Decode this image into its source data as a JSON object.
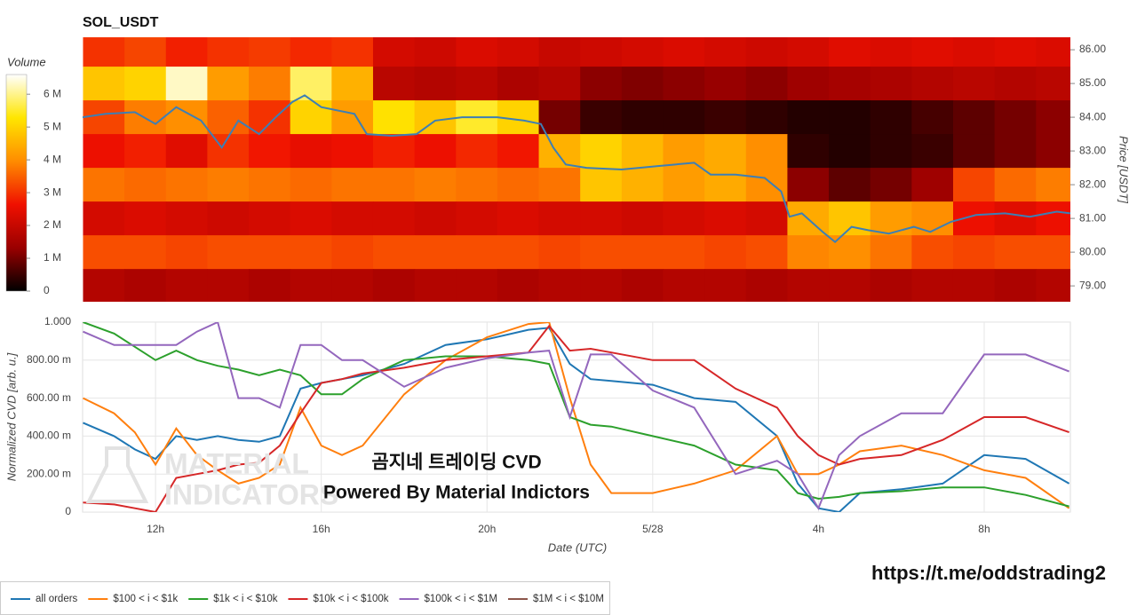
{
  "chart_data": [
    {
      "type": "heatmap",
      "title": "SOL_USDT",
      "x": [
        10.75,
        11.75,
        12.75,
        13.75,
        14.75,
        15.75,
        16.75,
        17.75,
        18.75,
        19.75,
        20.75,
        21.75,
        22.75,
        23.75,
        24.75,
        25.75,
        26.75,
        27.75,
        28.75,
        29.75,
        30.75,
        31.75,
        32.75,
        33.75
      ],
      "y": [
        86,
        85,
        84,
        83,
        82,
        81,
        80,
        79
      ],
      "z": [
        [
          3.0,
          3.2,
          2.8,
          3.0,
          3.1,
          2.9,
          3.0,
          2.2,
          2.1,
          2.3,
          2.2,
          2.0,
          2.1,
          2.2,
          2.3,
          2.2,
          2.1,
          2.2,
          2.4,
          2.3,
          2.4,
          2.3,
          2.4,
          2.3
        ],
        [
          4.8,
          5.0,
          6.3,
          4.2,
          3.8,
          5.8,
          4.5,
          1.8,
          1.7,
          1.8,
          1.6,
          1.7,
          1.2,
          1.1,
          1.2,
          1.3,
          1.2,
          1.4,
          1.5,
          1.6,
          1.7,
          1.8,
          1.7,
          1.8
        ],
        [
          3.2,
          3.8,
          4.0,
          3.5,
          3.0,
          5.0,
          4.2,
          5.2,
          4.8,
          5.5,
          5.0,
          1.0,
          0.5,
          0.4,
          0.4,
          0.5,
          0.4,
          0.3,
          0.3,
          0.4,
          0.6,
          0.8,
          1.0,
          1.2
        ],
        [
          2.6,
          2.8,
          2.4,
          3.0,
          2.7,
          2.5,
          2.6,
          2.8,
          2.6,
          2.9,
          2.7,
          4.5,
          5.0,
          4.6,
          4.2,
          4.4,
          4.0,
          0.4,
          0.3,
          0.4,
          0.5,
          0.8,
          1.0,
          1.2
        ],
        [
          3.7,
          3.6,
          3.7,
          3.8,
          3.7,
          3.6,
          3.7,
          3.7,
          3.8,
          3.7,
          3.6,
          3.7,
          4.8,
          4.5,
          4.2,
          4.4,
          4.0,
          1.2,
          0.8,
          1.0,
          1.4,
          3.2,
          3.6,
          3.8
        ],
        [
          2.2,
          2.3,
          2.2,
          2.1,
          2.2,
          2.3,
          2.2,
          2.2,
          2.1,
          2.2,
          2.3,
          2.2,
          2.2,
          2.1,
          2.2,
          2.3,
          2.2,
          4.4,
          4.8,
          4.2,
          4.0,
          2.6,
          2.4,
          2.6
        ],
        [
          3.3,
          3.3,
          3.2,
          3.3,
          3.3,
          3.3,
          3.2,
          3.3,
          3.3,
          3.3,
          3.3,
          3.2,
          3.3,
          3.3,
          3.3,
          3.2,
          3.3,
          3.9,
          4.0,
          3.7,
          3.3,
          3.2,
          3.3,
          3.3
        ],
        [
          1.7,
          1.6,
          1.7,
          1.7,
          1.6,
          1.7,
          1.7,
          1.6,
          1.7,
          1.7,
          1.6,
          1.7,
          1.7,
          1.6,
          1.7,
          1.7,
          1.6,
          1.7,
          1.7,
          1.6,
          1.7,
          1.7,
          1.6,
          1.7
        ]
      ],
      "colorscale": [
        "#000000",
        "#9a0000",
        "#f01000",
        "#ff8c00",
        "#ffe600",
        "#ffffff"
      ],
      "colorbar_title": "Volume",
      "zlim": [
        0,
        6.6
      ],
      "zticks": [
        0,
        {
          "value": 1,
          "label": "1 M"
        },
        {
          "value": 2,
          "label": "2 M"
        },
        {
          "value": 3,
          "label": "3 M"
        },
        {
          "value": 4,
          "label": "4 M"
        },
        {
          "value": 5,
          "label": "5 M"
        },
        {
          "value": 6,
          "label": "6 M"
        }
      ],
      "xlim": [
        10.24,
        34.08
      ],
      "ylim": [
        78.53,
        86.37
      ],
      "yticks": [
        {
          "value": 79,
          "label": "79.00"
        },
        {
          "value": 80,
          "label": "80.00"
        },
        {
          "value": 81,
          "label": "81.00"
        },
        {
          "value": 82,
          "label": "82.00"
        },
        {
          "value": 83,
          "label": "83.00"
        },
        {
          "value": 84,
          "label": "84.00"
        },
        {
          "value": 85,
          "label": "85.00"
        },
        {
          "value": 86,
          "label": "86.00"
        }
      ],
      "y_label": "Price [USDT]",
      "series": [
        {
          "color": "#3d7fb5",
          "x": [
            10.24,
            10.8,
            11.5,
            12.0,
            12.5,
            13.1,
            13.6,
            14.0,
            14.5,
            14.9,
            15.3,
            15.6,
            16.0,
            16.4,
            16.8,
            17.1,
            17.7,
            18.3,
            18.75,
            19.4,
            20.25,
            20.9,
            21.3,
            21.6,
            21.9,
            22.4,
            23.25,
            24.1,
            25.0,
            25.4,
            26.0,
            26.7,
            27.1,
            27.3,
            27.6,
            28.1,
            28.4,
            28.8,
            29.2,
            29.7,
            30.3,
            30.7,
            31.2,
            31.8,
            32.5,
            33.1,
            33.75,
            34.08
          ],
          "values": [
            84.0,
            84.1,
            84.15,
            83.8,
            84.3,
            83.9,
            83.1,
            83.9,
            83.5,
            84.0,
            84.45,
            84.65,
            84.3,
            84.2,
            84.1,
            83.5,
            83.45,
            83.5,
            83.9,
            84.0,
            84.0,
            83.9,
            83.8,
            83.1,
            82.6,
            82.5,
            82.45,
            82.55,
            82.65,
            82.3,
            82.3,
            82.2,
            81.8,
            81.05,
            81.15,
            80.6,
            80.3,
            80.75,
            80.65,
            80.55,
            80.75,
            80.6,
            80.9,
            81.1,
            81.15,
            81.05,
            81.2,
            81.15
          ]
        }
      ]
    },
    {
      "type": "line",
      "x": [
        10.25,
        11,
        11.5,
        12,
        12.5,
        13,
        13.5,
        14,
        14.5,
        15,
        15.5,
        16,
        16.5,
        17,
        18,
        19,
        20,
        21,
        21.5,
        22,
        22.5,
        23,
        24,
        25,
        26,
        27,
        27.5,
        28,
        28.5,
        29,
        30,
        31,
        32,
        33,
        34.05
      ],
      "series": [
        {
          "name": "all orders",
          "color": "#1f77b4",
          "values": [
            0.47,
            0.4,
            0.33,
            0.28,
            0.4,
            0.38,
            0.4,
            0.38,
            0.37,
            0.4,
            0.65,
            0.68,
            0.7,
            0.72,
            0.78,
            0.88,
            0.91,
            0.96,
            0.97,
            0.78,
            0.7,
            0.69,
            0.67,
            0.6,
            0.58,
            0.4,
            0.15,
            0.02,
            0.0,
            0.1,
            0.12,
            0.15,
            0.3,
            0.28,
            0.15
          ]
        },
        {
          "name": "$100 < i < $1k",
          "color": "#ff7f0e",
          "values": [
            0.6,
            0.52,
            0.42,
            0.25,
            0.44,
            0.3,
            0.22,
            0.15,
            0.18,
            0.25,
            0.55,
            0.35,
            0.3,
            0.35,
            0.62,
            0.8,
            0.92,
            0.99,
            1.0,
            0.6,
            0.25,
            0.1,
            0.1,
            0.15,
            0.22,
            0.4,
            0.2,
            0.2,
            0.25,
            0.32,
            0.35,
            0.3,
            0.22,
            0.18,
            0.02
          ]
        },
        {
          "name": "$1k < i < $10k",
          "color": "#2ca02c",
          "values": [
            1.0,
            0.94,
            0.87,
            0.8,
            0.85,
            0.8,
            0.77,
            0.75,
            0.72,
            0.75,
            0.72,
            0.62,
            0.62,
            0.7,
            0.8,
            0.82,
            0.82,
            0.8,
            0.78,
            0.5,
            0.46,
            0.45,
            0.4,
            0.35,
            0.25,
            0.22,
            0.1,
            0.07,
            0.08,
            0.1,
            0.11,
            0.13,
            0.13,
            0.09,
            0.03
          ]
        },
        {
          "name": "$10k < i < $100k",
          "color": "#d62728",
          "values": [
            0.05,
            0.04,
            0.02,
            0.0,
            0.18,
            0.2,
            0.22,
            0.25,
            0.26,
            0.35,
            0.52,
            0.68,
            0.7,
            0.73,
            0.76,
            0.8,
            0.82,
            0.84,
            0.98,
            0.85,
            0.86,
            0.84,
            0.8,
            0.8,
            0.65,
            0.55,
            0.4,
            0.3,
            0.25,
            0.28,
            0.3,
            0.38,
            0.5,
            0.5,
            0.42
          ]
        },
        {
          "name": "$100k < i < $1M",
          "color": "#9467bd",
          "values": [
            0.95,
            0.88,
            0.88,
            0.88,
            0.88,
            0.95,
            1.0,
            0.6,
            0.6,
            0.55,
            0.88,
            0.88,
            0.8,
            0.8,
            0.66,
            0.76,
            0.81,
            0.84,
            0.85,
            0.5,
            0.83,
            0.83,
            0.64,
            0.55,
            0.2,
            0.27,
            0.2,
            0.02,
            0.3,
            0.4,
            0.52,
            0.52,
            0.83,
            0.83,
            0.74
          ]
        },
        {
          "name": "$1M < i < $10M",
          "color": "#8c564b",
          "values": [
            null,
            null,
            null,
            null,
            null,
            null,
            null,
            null,
            null,
            null,
            null,
            null,
            null,
            null,
            null,
            null,
            null,
            null,
            null,
            null,
            null,
            null,
            null,
            null,
            null,
            null,
            null,
            null,
            null,
            null,
            null,
            null,
            null,
            null,
            null
          ]
        }
      ],
      "xlim": [
        10.24,
        34.08
      ],
      "xticks": [
        {
          "value": 12,
          "label": "12h"
        },
        {
          "value": 16,
          "label": "16h"
        },
        {
          "value": 20,
          "label": "20h"
        },
        {
          "value": 24,
          "label": "5/28"
        },
        {
          "value": 28,
          "label": "4h"
        },
        {
          "value": 32,
          "label": "8h"
        }
      ],
      "ylim": [
        0,
        1
      ],
      "yticks": [
        0,
        {
          "value": 0.2,
          "label": "200.00 m"
        },
        {
          "value": 0.4,
          "label": "400.00 m"
        },
        {
          "value": 0.6,
          "label": "600.00 m"
        },
        {
          "value": 0.8,
          "label": "800.00 m"
        },
        {
          "value": 1,
          "label": "1.000"
        }
      ],
      "grid": true,
      "x_label": "Date (UTC)",
      "y_label": "Normalized CVD [arb. u.]",
      "annotations": [
        "곰지네 트레이딩 CVD",
        "Powered By Material Indictors"
      ],
      "watermark": [
        "MATERIAL",
        "INDICATORS"
      ]
    }
  ],
  "footer": {
    "link": "https://t.me/oddstrading2"
  }
}
